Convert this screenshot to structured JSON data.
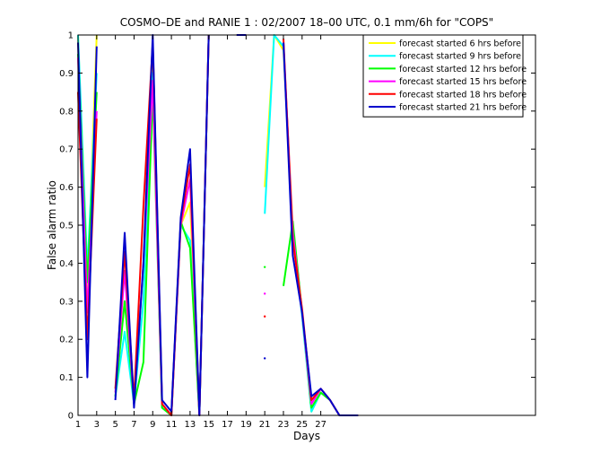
{
  "chart_data": {
    "type": "line",
    "title": "COSMO–DE and RANIE 1 : 02/2007 18–00 UTC, 0.1 mm/6h for \"COPS\"",
    "xlabel": "Days",
    "ylabel": "False alarm ratio",
    "xlim": [
      1,
      50
    ],
    "ylim": [
      0,
      1
    ],
    "xticks": [
      1,
      3,
      5,
      7,
      9,
      11,
      13,
      15,
      17,
      19,
      21,
      23,
      25,
      27
    ],
    "yticks": [
      0,
      0.1,
      0.2,
      0.3,
      0.4,
      0.5,
      0.6,
      0.7,
      0.8,
      0.9,
      1
    ],
    "ytick_labels": [
      "0",
      "0.1",
      "0.2",
      "0.3",
      "0.4",
      "0.5",
      "0.6",
      "0.7",
      "0.8",
      "0.9",
      "1"
    ],
    "grid": false,
    "legend_position": "top-right",
    "series": [
      {
        "name": "forecast started 6 hrs before",
        "color": "#ffff00",
        "values": [
          1.0,
          0.32,
          1.0,
          null,
          0.06,
          0.3,
          0.04,
          0.4,
          0.98,
          0.02,
          0.0,
          0.5,
          0.56,
          0.0,
          1.0,
          null,
          null,
          1.0,
          1.0,
          null,
          0.6,
          1.0,
          0.96,
          0.5,
          0.27,
          0.01,
          0.06,
          0.04,
          0.0,
          0.0,
          0.0
        ]
      },
      {
        "name": "forecast started 9 hrs before",
        "color": "#00ffff",
        "values": [
          1.0,
          0.38,
          0.9,
          null,
          0.05,
          0.22,
          0.03,
          0.3,
          0.9,
          0.02,
          0.0,
          0.5,
          0.46,
          0.0,
          1.0,
          null,
          null,
          1.0,
          1.0,
          null,
          0.53,
          1.0,
          0.97,
          0.48,
          0.26,
          0.01,
          0.06,
          0.04,
          0.0,
          0.0,
          0.0
        ]
      },
      {
        "name": "forecast started 12 hrs before",
        "color": "#00ff00",
        "values": [
          0.95,
          0.35,
          0.85,
          null,
          0.05,
          0.3,
          0.03,
          0.14,
          0.85,
          0.02,
          0.0,
          0.51,
          0.44,
          0.0,
          1.0,
          null,
          null,
          1.0,
          1.0,
          null,
          0.39,
          null,
          0.34,
          0.51,
          0.27,
          0.02,
          0.06,
          0.04,
          0.0,
          0.0,
          0.0
        ]
      },
      {
        "name": "forecast started 15 hrs before",
        "color": "#ff00ff",
        "values": [
          0.94,
          0.27,
          0.8,
          null,
          0.06,
          0.38,
          0.03,
          0.4,
          0.88,
          0.03,
          0.0,
          0.5,
          0.62,
          0.0,
          1.0,
          null,
          null,
          1.0,
          1.0,
          null,
          0.32,
          null,
          0.98,
          0.48,
          0.27,
          0.03,
          0.07,
          0.04,
          0.0,
          0.0,
          0.0
        ]
      },
      {
        "name": "forecast started 18 hrs before",
        "color": "#ff0000",
        "values": [
          0.85,
          0.2,
          0.78,
          null,
          0.07,
          0.43,
          0.04,
          0.55,
          0.98,
          0.03,
          0.0,
          0.51,
          0.66,
          0.0,
          1.0,
          null,
          null,
          1.0,
          1.0,
          null,
          0.26,
          null,
          0.99,
          0.46,
          0.28,
          0.04,
          0.07,
          0.04,
          0.0,
          0.0,
          0.0
        ]
      },
      {
        "name": "forecast started 21 hrs before",
        "color": "#0000cc",
        "values": [
          0.98,
          0.1,
          0.97,
          null,
          0.04,
          0.48,
          0.02,
          0.4,
          1.0,
          0.04,
          0.01,
          0.52,
          0.7,
          0.0,
          1.0,
          null,
          null,
          1.0,
          1.0,
          null,
          0.15,
          null,
          0.98,
          0.42,
          0.27,
          0.05,
          0.07,
          0.04,
          0.0,
          0.0,
          0.0
        ]
      }
    ]
  }
}
